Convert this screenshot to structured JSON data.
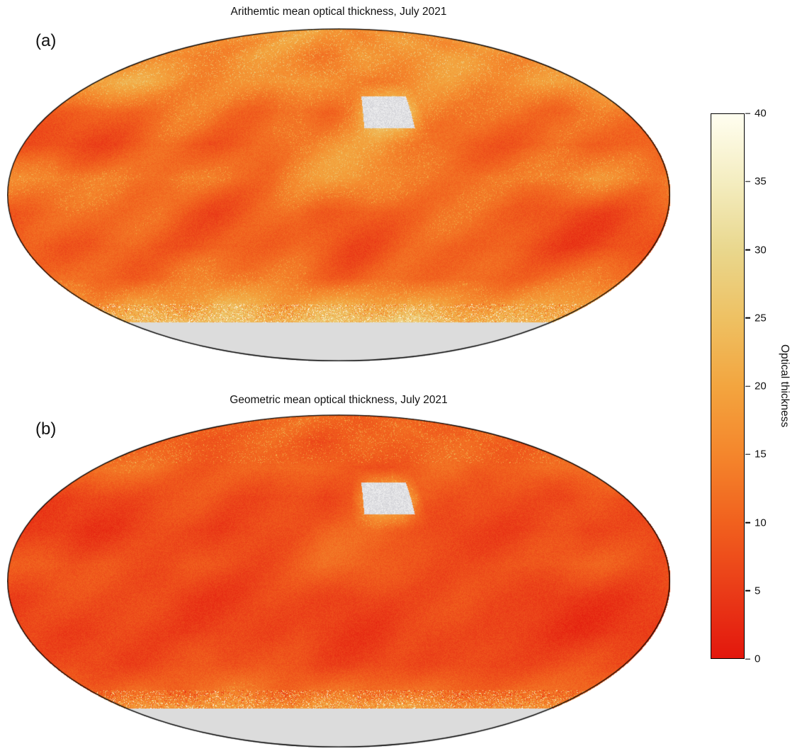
{
  "figure": {
    "background": "#ffffff",
    "panels": [
      {
        "label": "(a)",
        "title": "Arithemtic mean optical thickness, July 2021"
      },
      {
        "label": "(b)",
        "title": "Geometric mean optical thickness, July 2021"
      }
    ],
    "colorbar": {
      "label": "Optical thickness",
      "min": 0,
      "max": 40,
      "ticks": [
        0,
        5,
        10,
        15,
        20,
        25,
        30,
        35,
        40
      ],
      "stops": [
        [
          0,
          "#e3170d"
        ],
        [
          5,
          "#ea3c18"
        ],
        [
          10,
          "#f1611e"
        ],
        [
          15,
          "#f4862c"
        ],
        [
          20,
          "#f3a53f"
        ],
        [
          25,
          "#eec163"
        ],
        [
          30,
          "#e9d78d"
        ],
        [
          35,
          "#f4edc0"
        ],
        [
          40,
          "#fffef0"
        ]
      ],
      "nodata_color": "#dcdcdc",
      "missing_color": "#d6d6da"
    }
  },
  "chart_data": [
    {
      "type": "heatmap",
      "projection": "mollweide",
      "title": "Arithemtic mean optical thickness, July 2021",
      "units": "Optical thickness",
      "value_range": [
        0,
        40
      ],
      "nodata_region": "latitudes south of -60 shown light gray",
      "missing_patch": "gray-white no-retrieval patch over North Africa / Arabia (~25-40N, 15-45E)",
      "lat_centers": [
        82.5,
        67.5,
        52.5,
        37.5,
        22.5,
        7.5,
        -7.5,
        -22.5,
        -37.5,
        -52.5,
        -67.5,
        -82.5
      ],
      "lon_centers": [
        -172.5,
        -157.5,
        -142.5,
        -127.5,
        -112.5,
        -97.5,
        -82.5,
        -67.5,
        -52.5,
        -37.5,
        -22.5,
        -7.5,
        7.5,
        22.5,
        37.5,
        52.5,
        67.5,
        82.5,
        97.5,
        112.5,
        127.5,
        142.5,
        157.5,
        172.5
      ],
      "texture": 1.3,
      "edge_fill": 28,
      "values": [
        [
          16,
          17,
          18,
          17,
          16,
          17,
          18,
          18,
          17,
          16,
          16,
          17,
          18,
          17,
          16,
          16,
          17,
          18,
          18,
          17,
          16,
          16,
          17,
          17
        ],
        [
          17,
          16,
          15,
          15,
          16,
          18,
          19,
          18,
          16,
          15,
          14,
          15,
          17,
          18,
          16,
          15,
          16,
          17,
          18,
          17,
          16,
          15,
          16,
          17
        ],
        [
          21,
          22,
          20,
          18,
          15,
          14,
          15,
          16,
          18,
          21,
          21,
          18,
          15,
          14,
          14,
          14,
          15,
          16,
          15,
          16,
          17,
          19,
          20,
          21
        ],
        [
          12,
          11,
          10,
          10,
          11,
          12,
          11,
          10,
          11,
          13,
          13,
          12,
          16,
          null,
          null,
          15,
          14,
          13,
          12,
          12,
          11,
          10,
          11,
          12
        ],
        [
          9,
          9,
          8,
          8,
          9,
          10,
          9,
          8,
          9,
          11,
          14,
          16,
          17,
          18,
          16,
          14,
          12,
          11,
          10,
          9,
          9,
          8,
          9,
          9
        ],
        [
          15,
          16,
          14,
          13,
          12,
          14,
          16,
          15,
          13,
          12,
          14,
          16,
          17,
          15,
          13,
          14,
          15,
          14,
          13,
          15,
          16,
          17,
          15,
          14
        ],
        [
          10,
          9,
          9,
          10,
          11,
          12,
          10,
          9,
          10,
          11,
          12,
          9,
          8,
          9,
          11,
          12,
          11,
          10,
          9,
          8,
          8,
          9,
          10,
          10
        ],
        [
          9,
          8,
          8,
          9,
          10,
          9,
          8,
          8,
          9,
          10,
          11,
          10,
          9,
          10,
          11,
          10,
          9,
          8,
          7,
          6,
          6,
          7,
          8,
          9
        ],
        [
          12,
          12,
          13,
          12,
          11,
          12,
          13,
          12,
          11,
          12,
          13,
          12,
          11,
          12,
          13,
          12,
          11,
          10,
          10,
          11,
          12,
          12,
          13,
          12
        ],
        [
          20,
          21,
          22,
          20,
          19,
          21,
          22,
          21,
          20,
          19,
          21,
          22,
          21,
          20,
          21,
          22,
          20,
          19,
          20,
          21,
          22,
          21,
          20,
          20
        ],
        [
          null,
          null,
          null,
          null,
          null,
          null,
          null,
          null,
          null,
          null,
          null,
          null,
          null,
          null,
          null,
          null,
          null,
          null,
          null,
          null,
          null,
          null,
          null,
          null
        ],
        [
          null,
          null,
          null,
          null,
          null,
          null,
          null,
          null,
          null,
          null,
          null,
          null,
          null,
          null,
          null,
          null,
          null,
          null,
          null,
          null,
          null,
          null,
          null,
          null
        ]
      ]
    },
    {
      "type": "heatmap",
      "projection": "mollweide",
      "title": "Geometric mean optical thickness, July 2021",
      "units": "Optical thickness",
      "value_range": [
        0,
        40
      ],
      "nodata_region": "latitudes south of -60 shown light gray",
      "missing_patch": "gray-white no-retrieval patch over North Africa / Arabia (~25-40N, 15-45E)",
      "lat_centers": [
        82.5,
        67.5,
        52.5,
        37.5,
        22.5,
        7.5,
        -7.5,
        -22.5,
        -37.5,
        -52.5,
        -67.5,
        -82.5
      ],
      "lon_centers": [
        -172.5,
        -157.5,
        -142.5,
        -127.5,
        -112.5,
        -97.5,
        -82.5,
        -67.5,
        -52.5,
        -37.5,
        -22.5,
        -7.5,
        7.5,
        22.5,
        37.5,
        52.5,
        67.5,
        82.5,
        97.5,
        112.5,
        127.5,
        142.5,
        157.5,
        172.5
      ],
      "texture": 0.8,
      "edge_fill": 24,
      "values": [
        [
          10,
          10,
          11,
          10,
          10,
          10,
          11,
          11,
          10,
          10,
          10,
          10,
          11,
          10,
          10,
          10,
          10,
          11,
          11,
          10,
          10,
          10,
          10,
          10
        ],
        [
          10,
          10,
          9,
          9,
          10,
          11,
          11,
          11,
          10,
          9,
          8,
          9,
          10,
          11,
          10,
          9,
          10,
          10,
          11,
          10,
          10,
          9,
          10,
          10
        ],
        [
          13,
          13,
          12,
          11,
          9,
          8,
          9,
          10,
          11,
          13,
          13,
          11,
          9,
          8,
          8,
          8,
          9,
          10,
          9,
          10,
          10,
          11,
          12,
          13
        ],
        [
          7,
          7,
          6,
          6,
          7,
          7,
          7,
          6,
          7,
          8,
          8,
          7,
          10,
          null,
          null,
          9,
          8,
          8,
          7,
          7,
          7,
          6,
          7,
          7
        ],
        [
          6,
          6,
          5,
          5,
          6,
          6,
          6,
          5,
          6,
          7,
          8,
          10,
          10,
          11,
          10,
          8,
          7,
          7,
          6,
          6,
          6,
          5,
          6,
          6
        ],
        [
          9,
          10,
          8,
          8,
          7,
          8,
          10,
          9,
          8,
          7,
          8,
          10,
          10,
          9,
          8,
          8,
          9,
          8,
          8,
          9,
          10,
          10,
          9,
          8
        ],
        [
          6,
          6,
          6,
          6,
          7,
          7,
          6,
          6,
          6,
          7,
          7,
          6,
          5,
          6,
          7,
          7,
          7,
          6,
          6,
          5,
          5,
          6,
          6,
          6
        ],
        [
          6,
          5,
          5,
          6,
          6,
          6,
          5,
          5,
          6,
          6,
          7,
          6,
          6,
          6,
          7,
          6,
          6,
          5,
          4,
          4,
          4,
          4,
          5,
          6
        ],
        [
          7,
          7,
          8,
          7,
          7,
          7,
          8,
          7,
          7,
          7,
          8,
          7,
          7,
          7,
          8,
          7,
          7,
          6,
          6,
          7,
          7,
          7,
          8,
          7
        ],
        [
          12,
          13,
          13,
          12,
          11,
          13,
          13,
          13,
          12,
          11,
          13,
          13,
          13,
          12,
          13,
          13,
          12,
          11,
          12,
          13,
          13,
          13,
          12,
          12
        ],
        [
          null,
          null,
          null,
          null,
          null,
          null,
          null,
          null,
          null,
          null,
          null,
          null,
          null,
          null,
          null,
          null,
          null,
          null,
          null,
          null,
          null,
          null,
          null,
          null
        ],
        [
          null,
          null,
          null,
          null,
          null,
          null,
          null,
          null,
          null,
          null,
          null,
          null,
          null,
          null,
          null,
          null,
          null,
          null,
          null,
          null,
          null,
          null,
          null,
          null
        ]
      ]
    }
  ]
}
